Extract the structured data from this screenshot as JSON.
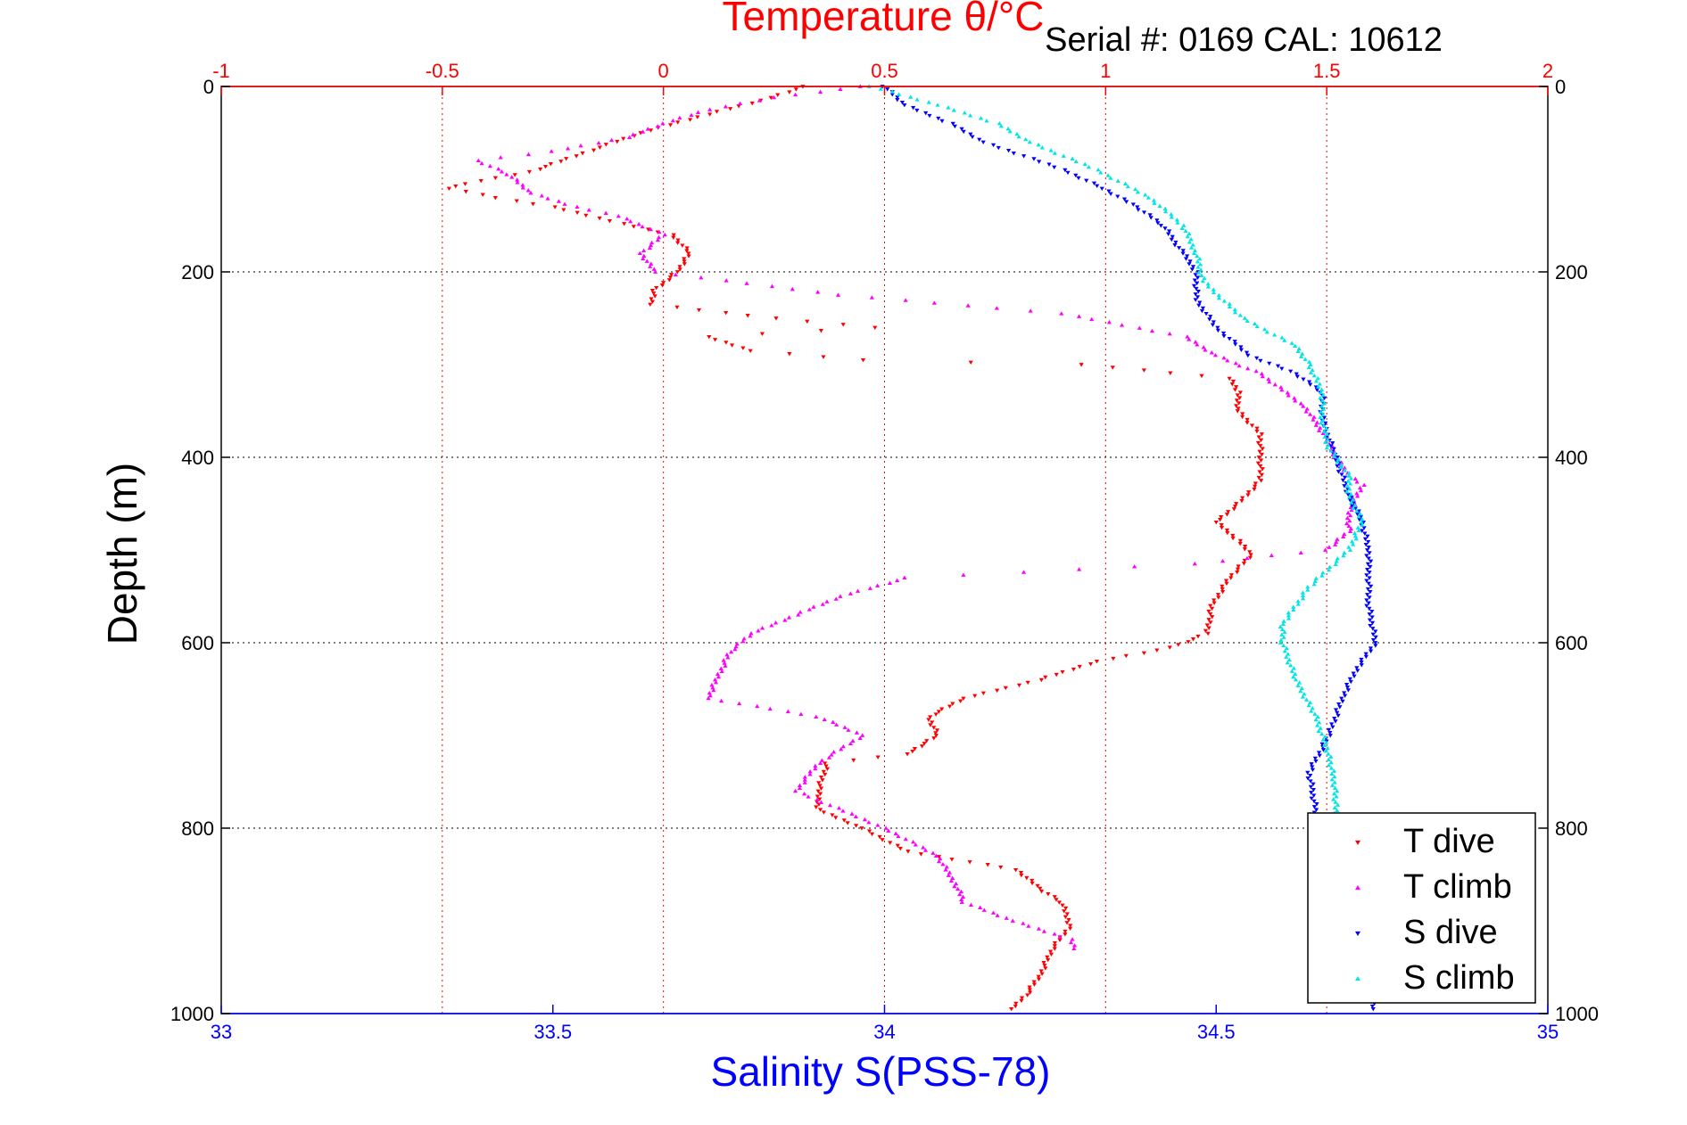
{
  "chart_data": {
    "type": "scatter",
    "title": "Temperature θ/°C",
    "subtitle": "Serial #: 0169 CAL: 10612",
    "ylabel": "Depth (m)",
    "xlabel": "Salinity S(PSS-78)",
    "ylim": [
      0,
      1000
    ],
    "y_reversed": true,
    "xlim_temperature": [
      -1,
      2
    ],
    "xlim_salinity": [
      33,
      35
    ],
    "yticks": [
      0,
      200,
      400,
      600,
      800,
      1000
    ],
    "temperature_ticks": [
      "-1",
      "-0.5",
      "0",
      "0.5",
      "1",
      "1.5",
      "2"
    ],
    "salinity_ticks": [
      "33",
      "33.5",
      "34",
      "34.5",
      "35"
    ],
    "temperature_tick_values": [
      -1,
      -0.5,
      0,
      0.5,
      1,
      1.5,
      2
    ],
    "salinity_tick_values": [
      33,
      33.5,
      34,
      34.5,
      35
    ],
    "grid": "vertical red lines at temperature ticks, horizontal black dotted lines at depth ticks",
    "legend": {
      "position": "bottom-right"
    },
    "series": [
      {
        "name": "T dive",
        "axis": "temperature",
        "color": "#ff0000",
        "marker": "triangle-down",
        "points": [
          [
            0.32,
            0
          ],
          [
            0.22,
            15
          ],
          [
            0.1,
            30
          ],
          [
            -0.05,
            50
          ],
          [
            -0.2,
            75
          ],
          [
            -0.3,
            92
          ],
          [
            -0.45,
            105
          ],
          [
            -0.48,
            110
          ],
          [
            -0.38,
            120
          ],
          [
            -0.25,
            130
          ],
          [
            -0.12,
            145
          ],
          [
            0.02,
            160
          ],
          [
            0.06,
            180
          ],
          [
            0.03,
            200
          ],
          [
            -0.02,
            220
          ],
          [
            -0.03,
            235
          ],
          [
            0.25,
            250
          ],
          [
            0.48,
            260
          ],
          [
            0.1,
            270
          ],
          [
            0.2,
            285
          ],
          [
            0.45,
            295
          ],
          [
            0.95,
            300
          ],
          [
            1.28,
            315
          ],
          [
            1.3,
            330
          ],
          [
            1.3,
            350
          ],
          [
            1.35,
            375
          ],
          [
            1.35,
            400
          ],
          [
            1.35,
            425
          ],
          [
            1.3,
            450
          ],
          [
            1.25,
            470
          ],
          [
            1.3,
            490
          ],
          [
            1.33,
            505
          ],
          [
            1.28,
            530
          ],
          [
            1.24,
            560
          ],
          [
            1.23,
            590
          ],
          [
            1.15,
            605
          ],
          [
            0.98,
            620
          ],
          [
            0.85,
            640
          ],
          [
            0.68,
            660
          ],
          [
            0.6,
            680
          ],
          [
            0.62,
            700
          ],
          [
            0.55,
            720
          ],
          [
            0.37,
            730
          ],
          [
            0.35,
            760
          ],
          [
            0.35,
            780
          ],
          [
            0.45,
            800
          ],
          [
            0.55,
            825
          ],
          [
            0.8,
            845
          ],
          [
            0.85,
            865
          ],
          [
            0.9,
            880
          ],
          [
            0.92,
            905
          ],
          [
            0.88,
            930
          ],
          [
            0.85,
            960
          ],
          [
            0.82,
            980
          ],
          [
            0.79,
            995
          ]
        ]
      },
      {
        "name": "T climb",
        "axis": "temperature",
        "color": "#ff00ff",
        "marker": "triangle-up",
        "points": [
          [
            0.45,
            0
          ],
          [
            0.25,
            12
          ],
          [
            0.1,
            25
          ],
          [
            0.0,
            40
          ],
          [
            -0.08,
            55
          ],
          [
            -0.25,
            70
          ],
          [
            -0.42,
            80
          ],
          [
            -0.35,
            95
          ],
          [
            -0.3,
            115
          ],
          [
            -0.2,
            130
          ],
          [
            -0.1,
            140
          ],
          [
            0.0,
            160
          ],
          [
            -0.05,
            180
          ],
          [
            -0.02,
            200
          ],
          [
            0.4,
            225
          ],
          [
            0.9,
            245
          ],
          [
            1.18,
            270
          ],
          [
            1.25,
            290
          ],
          [
            1.35,
            310
          ],
          [
            1.45,
            345
          ],
          [
            1.5,
            380
          ],
          [
            1.52,
            400
          ],
          [
            1.55,
            420
          ],
          [
            1.58,
            430
          ],
          [
            1.55,
            460
          ],
          [
            1.55,
            480
          ],
          [
            1.5,
            500
          ],
          [
            1.2,
            515
          ],
          [
            0.55,
            530
          ],
          [
            0.4,
            550
          ],
          [
            0.3,
            570
          ],
          [
            0.2,
            590
          ],
          [
            0.15,
            610
          ],
          [
            0.12,
            640
          ],
          [
            0.1,
            660
          ],
          [
            0.35,
            680
          ],
          [
            0.45,
            700
          ],
          [
            0.35,
            730
          ],
          [
            0.3,
            760
          ],
          [
            0.5,
            800
          ],
          [
            0.62,
            830
          ],
          [
            0.66,
            860
          ],
          [
            0.68,
            880
          ],
          [
            0.79,
            900
          ],
          [
            0.92,
            920
          ],
          [
            0.93,
            930
          ]
        ]
      },
      {
        "name": "S dive",
        "axis": "salinity",
        "color": "#0000ff",
        "marker": "triangle-down",
        "points": [
          [
            34.0,
            0
          ],
          [
            34.03,
            20
          ],
          [
            34.1,
            40
          ],
          [
            34.15,
            60
          ],
          [
            34.27,
            90
          ],
          [
            34.33,
            110
          ],
          [
            34.38,
            130
          ],
          [
            34.42,
            150
          ],
          [
            34.45,
            180
          ],
          [
            34.47,
            200
          ],
          [
            34.47,
            230
          ],
          [
            34.5,
            260
          ],
          [
            34.55,
            290
          ],
          [
            34.62,
            310
          ],
          [
            34.66,
            330
          ],
          [
            34.66,
            360
          ],
          [
            34.68,
            400
          ],
          [
            34.7,
            440
          ],
          [
            34.72,
            470
          ],
          [
            34.73,
            500
          ],
          [
            34.73,
            530
          ],
          [
            34.73,
            560
          ],
          [
            34.74,
            600
          ],
          [
            34.71,
            630
          ],
          [
            34.69,
            660
          ],
          [
            34.67,
            700
          ],
          [
            34.64,
            740
          ],
          [
            34.65,
            780
          ],
          [
            34.74,
            995
          ]
        ]
      },
      {
        "name": "S climb",
        "axis": "salinity",
        "color": "#00e5e5",
        "marker": "triangle-up",
        "points": [
          [
            33.98,
            0
          ],
          [
            34.08,
            20
          ],
          [
            34.17,
            40
          ],
          [
            34.22,
            60
          ],
          [
            34.32,
            90
          ],
          [
            34.4,
            120
          ],
          [
            34.45,
            150
          ],
          [
            34.47,
            180
          ],
          [
            34.48,
            210
          ],
          [
            34.54,
            250
          ],
          [
            34.62,
            280
          ],
          [
            34.64,
            300
          ],
          [
            34.66,
            330
          ],
          [
            34.66,
            360
          ],
          [
            34.67,
            390
          ],
          [
            34.7,
            420
          ],
          [
            34.7,
            440
          ],
          [
            34.72,
            470
          ],
          [
            34.7,
            500
          ],
          [
            34.64,
            540
          ],
          [
            34.6,
            580
          ],
          [
            34.6,
            600
          ],
          [
            34.62,
            640
          ],
          [
            34.65,
            680
          ],
          [
            34.67,
            720
          ],
          [
            34.68,
            760
          ],
          [
            34.68,
            790
          ]
        ]
      }
    ]
  },
  "legend": {
    "items": [
      {
        "label": "T dive",
        "color": "#ff0000",
        "marker": "triangle-down"
      },
      {
        "label": "T climb",
        "color": "#ff00ff",
        "marker": "triangle-up"
      },
      {
        "label": "S dive",
        "color": "#0000ff",
        "marker": "triangle-down"
      },
      {
        "label": "S climb",
        "color": "#00e5e5",
        "marker": "triangle-up"
      }
    ]
  },
  "colors": {
    "temperature_axis": "#ff0000",
    "salinity_axis": "#0000ff",
    "depth_axis": "#000000"
  }
}
